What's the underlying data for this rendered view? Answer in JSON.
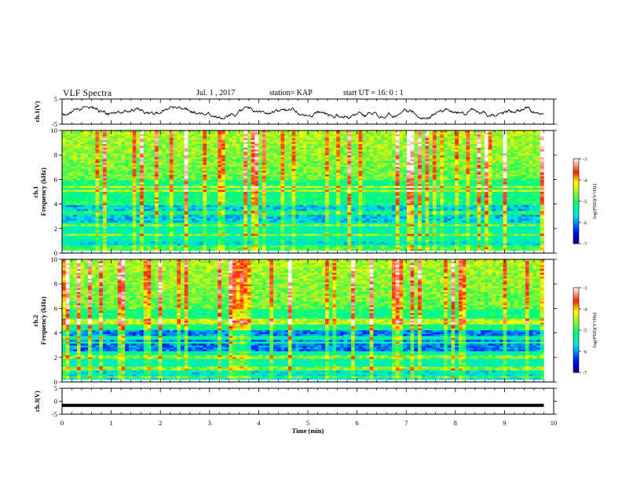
{
  "header": {
    "title": "VLF Spectra",
    "date": "Jul.  1  , 2017",
    "station": "station= KAP",
    "start": "start  UT =   16: 0  : 1"
  },
  "chart_data": [
    {
      "type": "line",
      "id": "ch1-waveform",
      "ylabel": "ch.1(V)",
      "ylim": [
        -5,
        5
      ],
      "yticks": [
        5,
        -5
      ],
      "xlim": [
        0,
        10
      ],
      "note_series": "dense noisy waveform spanning roughly -3 to 2 V",
      "line_color": "#000000"
    },
    {
      "type": "heatmap",
      "id": "ch1-spectrogram",
      "ylabel_line1": "ch.1",
      "ylabel_line2": "Frequency  (kHz)",
      "ylim": [
        0,
        10
      ],
      "yticks": [
        0,
        2,
        4,
        6,
        8,
        10
      ],
      "xlim": [
        0,
        9.8
      ],
      "colorbar": {
        "label": "log(PSD)(V²/Hz)",
        "range": [
          -7,
          -3
        ],
        "ticks": [
          "-3",
          "-4",
          "-5",
          "-6",
          "-7"
        ]
      }
    },
    {
      "type": "heatmap",
      "id": "ch2-spectrogram",
      "ylabel_line1": "ch.2",
      "ylabel_line2": "Frequency  (kHz)",
      "ylim": [
        0,
        10
      ],
      "yticks": [
        0,
        2,
        4,
        6,
        8,
        10
      ],
      "xlim": [
        0,
        9.8
      ],
      "colorbar": {
        "label": "log(PSD)(V²/Hz)",
        "range": [
          -7,
          -3
        ],
        "ticks": [
          "-3",
          "-4",
          "-5",
          "-6",
          "-7"
        ]
      }
    },
    {
      "type": "line",
      "id": "ch3-waveform",
      "ylabel": "ch.3(V)",
      "ylim": [
        -5,
        5
      ],
      "yticks": [
        5,
        0,
        -5
      ],
      "xlim": [
        0,
        9.8
      ],
      "x": [
        0,
        9.8
      ],
      "y": [
        -1.6,
        -1.6
      ]
    }
  ],
  "xaxis": {
    "label": "Time  (min)",
    "ticks": [
      "0",
      "1",
      "2",
      "3",
      "4",
      "5",
      "6",
      "7",
      "8",
      "9",
      "10"
    ],
    "range": [
      0,
      10
    ]
  }
}
